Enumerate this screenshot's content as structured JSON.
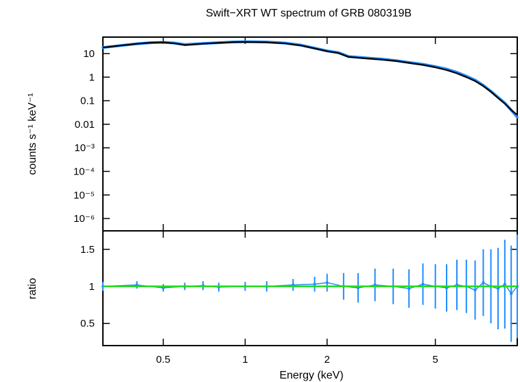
{
  "title": "Swift−XRT WT spectrum of GRB 080319B",
  "colors": {
    "data": "#1e8cff",
    "model": "#000000",
    "ratio_ref": "#22dd22",
    "axes": "#000000"
  },
  "chart_data": [
    {
      "type": "line",
      "panel": "spectrum",
      "title": "Swift−XRT WT spectrum of GRB 080319B",
      "xlabel": "",
      "ylabel": "counts s⁻¹ keV⁻¹",
      "xscale": "log",
      "yscale": "log",
      "xlim": [
        0.3,
        10
      ],
      "ylim": [
        3e-07,
        50
      ],
      "yticks": [
        1e-06,
        1e-05,
        0.0001,
        0.001,
        0.01,
        0.1,
        1,
        10
      ],
      "ytick_labels": [
        "10⁻⁶",
        "10⁻⁵",
        "10⁻⁴",
        "10⁻³",
        "0.01",
        "0.1",
        "1",
        "10"
      ],
      "series": [
        {
          "role": "data",
          "x": [
            0.3,
            0.35,
            0.4,
            0.45,
            0.5,
            0.55,
            0.6,
            0.7,
            0.8,
            0.9,
            1.0,
            1.2,
            1.4,
            1.6,
            1.8,
            2.0,
            2.2,
            2.4,
            2.8,
            3.2,
            3.6,
            4.0,
            4.5,
            5.0,
            5.5,
            6.0,
            6.5,
            7.0,
            7.5,
            8.0,
            8.5,
            9.0,
            9.5,
            10.0
          ],
          "y": [
            18,
            22,
            26,
            29,
            30,
            28,
            24,
            27,
            29,
            31,
            32,
            31,
            28,
            23,
            17,
            13,
            11,
            7.5,
            6.5,
            5.8,
            5.0,
            4.2,
            3.5,
            2.8,
            2.2,
            1.6,
            1.1,
            0.75,
            0.45,
            0.25,
            0.14,
            0.08,
            0.04,
            0.02
          ]
        },
        {
          "role": "model",
          "x": [
            0.3,
            0.35,
            0.4,
            0.45,
            0.5,
            0.55,
            0.6,
            0.7,
            0.8,
            0.9,
            1.0,
            1.2,
            1.4,
            1.6,
            1.8,
            2.0,
            2.2,
            2.4,
            2.8,
            3.2,
            3.6,
            4.0,
            4.5,
            5.0,
            5.5,
            6.0,
            6.5,
            7.0,
            7.5,
            8.0,
            8.5,
            9.0,
            9.5,
            10.0
          ],
          "y": [
            18,
            22,
            26,
            29,
            30,
            27,
            23,
            26,
            28.5,
            30.5,
            31,
            30,
            27,
            22,
            16.5,
            12.5,
            10.5,
            7.2,
            6.2,
            5.5,
            4.8,
            4.0,
            3.3,
            2.6,
            2.0,
            1.45,
            1.0,
            0.68,
            0.42,
            0.24,
            0.13,
            0.075,
            0.04,
            0.025
          ]
        }
      ]
    },
    {
      "type": "line",
      "panel": "ratio",
      "xlabel": "Energy (keV)",
      "ylabel": "ratio",
      "xscale": "log",
      "xlim": [
        0.3,
        10
      ],
      "ylim": [
        0.2,
        1.75
      ],
      "xticks": [
        0.5,
        1,
        2,
        5
      ],
      "xtick_labels": [
        "0.5",
        "1",
        "2",
        "5"
      ],
      "yticks": [
        0.5,
        1,
        1.5
      ],
      "ytick_labels": [
        "0.5",
        "1",
        "1.5"
      ],
      "reference_line": 1,
      "series": [
        {
          "role": "ratio",
          "x": [
            0.3,
            0.4,
            0.5,
            0.6,
            0.7,
            0.8,
            1.0,
            1.2,
            1.5,
            1.8,
            2.0,
            2.3,
            2.6,
            3.0,
            3.5,
            4.0,
            4.5,
            5.0,
            5.5,
            6.0,
            6.5,
            7.0,
            7.5,
            8.0,
            8.5,
            9.0,
            9.5,
            10.0
          ],
          "y": [
            1.0,
            1.02,
            0.98,
            1.0,
            1.01,
            0.99,
            1.0,
            1.0,
            1.02,
            1.03,
            1.05,
            1.0,
            0.98,
            1.02,
            1.0,
            0.97,
            1.03,
            1.0,
            0.98,
            1.02,
            1.0,
            0.95,
            1.05,
            1.0,
            0.97,
            1.03,
            0.9,
            1.0
          ],
          "err": [
            0.06,
            0.05,
            0.05,
            0.05,
            0.06,
            0.06,
            0.06,
            0.07,
            0.08,
            0.1,
            0.12,
            0.18,
            0.2,
            0.22,
            0.24,
            0.26,
            0.28,
            0.3,
            0.32,
            0.34,
            0.36,
            0.4,
            0.45,
            0.5,
            0.55,
            0.6,
            0.65,
            0.7
          ]
        }
      ]
    }
  ]
}
